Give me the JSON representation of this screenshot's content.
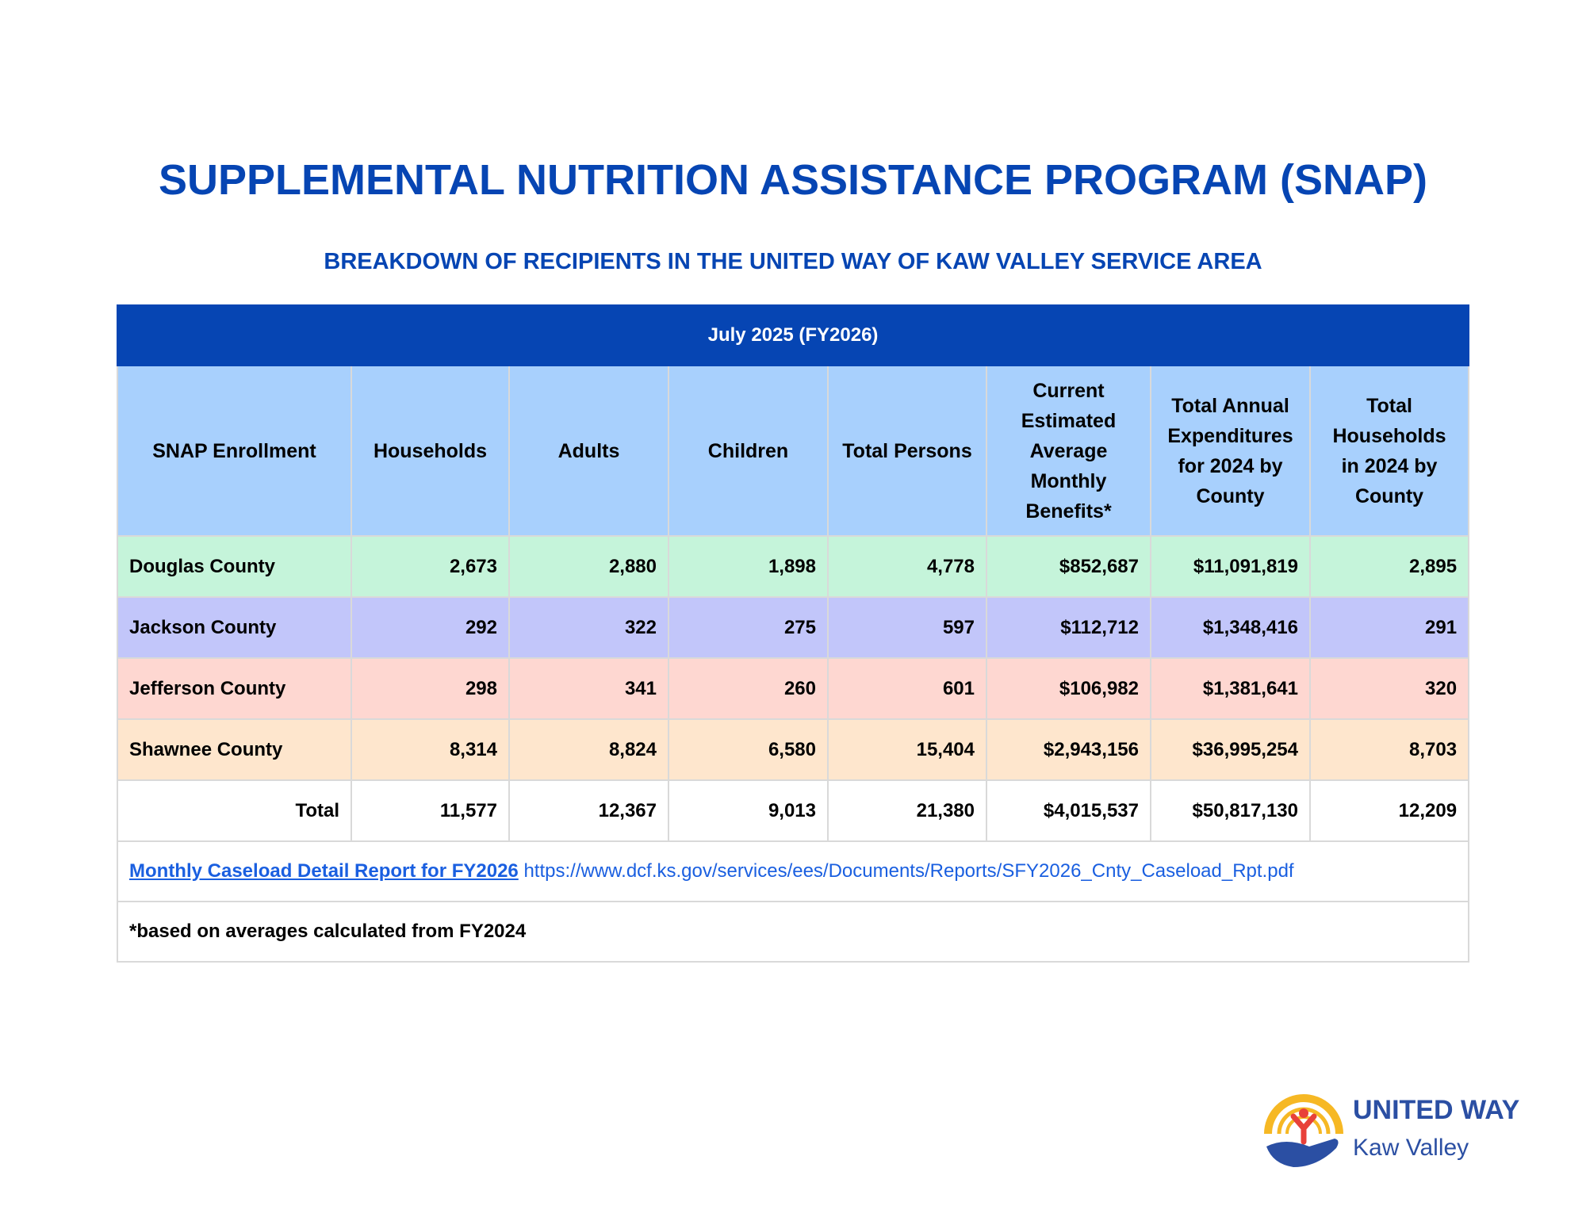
{
  "title": "SUPPLEMENTAL NUTRITION ASSISTANCE PROGRAM (SNAP)",
  "subtitle": "BREAKDOWN OF RECIPIENTS IN THE UNITED WAY OF KAW VALLEY SERVICE AREA",
  "table": {
    "period": "July 2025 (FY2026)",
    "headers": [
      "SNAP Enrollment",
      "Households",
      "Adults",
      "Children",
      "Total Persons",
      "Current Estimated Average Monthly Benefits*",
      "Total Annual Expenditures for 2024 by County",
      "Total Households in 2024 by County"
    ],
    "rows": [
      [
        "Douglas County",
        "2,673",
        "2,880",
        "1,898",
        "4,778",
        "$852,687",
        "$11,091,819",
        "2,895"
      ],
      [
        "Jackson County",
        "292",
        "322",
        "275",
        "597",
        "$112,712",
        "$1,348,416",
        "291"
      ],
      [
        "Jefferson County",
        "298",
        "341",
        "260",
        "601",
        "$106,982",
        "$1,381,641",
        "320"
      ],
      [
        "Shawnee County",
        "8,314",
        "8,824",
        "6,580",
        "15,404",
        "$2,943,156",
        "$36,995,254",
        "8,703"
      ]
    ],
    "total": [
      "Total",
      "11,577",
      "12,367",
      "9,013",
      "21,380",
      "$4,015,537",
      "$50,817,130",
      "12,209"
    ],
    "source_link": "Monthly Caseload Detail Report for FY2026",
    "source_url": "https://www.dcf.ks.gov/services/ees/Documents/Reports/SFY2026_Cnty_Caseload_Rpt.pdf",
    "footnote": "*based on averages calculated from FY2024"
  },
  "logo": {
    "line1": "UNITED WAY",
    "line2": "Kaw Valley"
  },
  "colors": {
    "brand_blue": "#0645b3",
    "header_blue": "#a8d0fd",
    "douglas": "#c5f4da",
    "jackson": "#c2c6fa",
    "jefferson": "#fed7d1",
    "shawnee": "#fee6cd"
  }
}
